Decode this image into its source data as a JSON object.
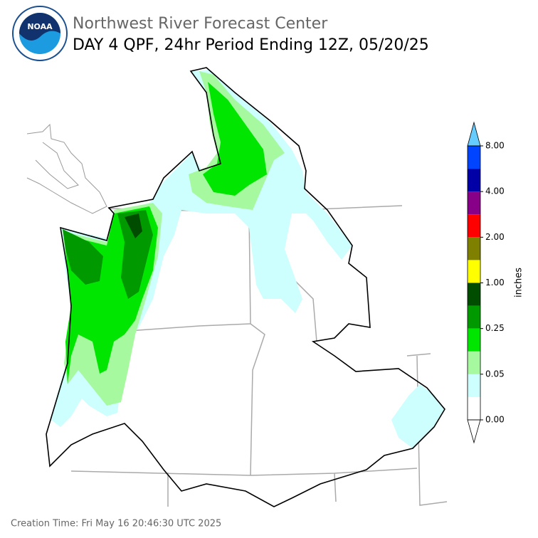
{
  "header": {
    "title": "Northwest River Forecast Center",
    "subtitle": "DAY 4 QPF, 24hr Period Ending 12Z, 05/20/25"
  },
  "logo": {
    "label": "NOAA"
  },
  "colorbar": {
    "label": "inches",
    "ticks": [
      {
        "value": 0,
        "label": "0.00"
      },
      {
        "value": 0.05,
        "label": "0.05"
      },
      {
        "value": 0.25,
        "label": "0.25"
      },
      {
        "value": 1,
        "label": "1.00"
      },
      {
        "value": 2,
        "label": "2.00"
      },
      {
        "value": 4,
        "label": "4.00"
      },
      {
        "value": 8,
        "label": "8.00"
      }
    ],
    "colors": [
      "#ffffff",
      "#ccfffe",
      "#a6f99e",
      "#00e600",
      "#009900",
      "#004d00",
      "#ffff00",
      "#808000",
      "#ff0000",
      "#880088",
      "#0000a6",
      "#0044ff"
    ],
    "over_color": "#66ccff",
    "under_color": "#ffffff"
  },
  "footer": {
    "creation_time": "Creation Time: Fri May 16 20:46:30 UTC 2025"
  }
}
